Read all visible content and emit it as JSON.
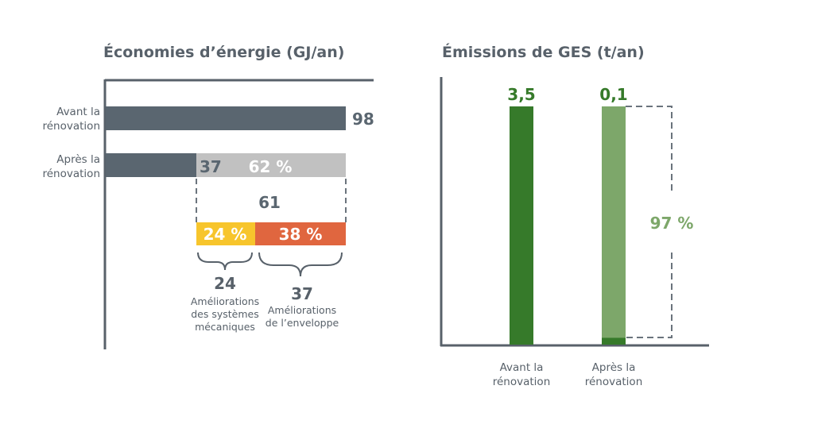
{
  "chart_data": [
    {
      "type": "bar",
      "orientation": "horizontal",
      "title": "Économies d’énergie (GJ/an)",
      "categories": [
        [
          "Avant la",
          "rénovation"
        ],
        [
          "Après la",
          "rénovation"
        ]
      ],
      "values": [
        98,
        37
      ],
      "value_labels": [
        "98",
        "37"
      ],
      "savings": {
        "value": 61,
        "label": "61",
        "percent_label": "62 %"
      },
      "breakdown": [
        {
          "value": 24,
          "percent_label": "24 %",
          "value_label": "24",
          "label": [
            "Améliorations",
            "des systèmes",
            "mécaniques"
          ],
          "color": "#f7c52c"
        },
        {
          "value": 37,
          "percent_label": "38 %",
          "value_label": "37",
          "label": [
            "Améliorations",
            "de l’enveloppe"
          ],
          "color": "#e0663f"
        }
      ],
      "colors": {
        "bar": "#5a6670",
        "savings": "#c1c1c1"
      },
      "xlim": [
        0,
        98
      ]
    },
    {
      "type": "bar",
      "orientation": "vertical",
      "title": "Émissions de GES (t/an)",
      "categories": [
        [
          "Avant la",
          "rénovation"
        ],
        [
          "Après la",
          "rénovation"
        ]
      ],
      "values": [
        3.5,
        0.1
      ],
      "value_labels": [
        "3,5",
        "0,1"
      ],
      "reduction_label": "97 %",
      "colors": {
        "bar": "#367a2a",
        "reduction": "#7da76a"
      },
      "ylim": [
        0,
        3.5
      ]
    }
  ]
}
